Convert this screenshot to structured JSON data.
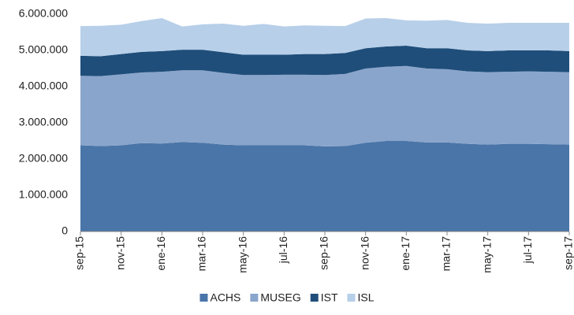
{
  "chart_data": {
    "type": "stacked_area",
    "categories": [
      "sep-15",
      null,
      "nov-15",
      null,
      "ene-16",
      null,
      "mar-16",
      null,
      "may-16",
      null,
      "jul-16",
      null,
      "sep-16",
      null,
      "nov-16",
      null,
      "ene-17",
      null,
      "mar-17",
      null,
      "may-17",
      null,
      "jul-17",
      null,
      "sep-17"
    ],
    "series": [
      {
        "name": "ACHS",
        "color": "#4a75a8",
        "values": [
          2380000,
          2360000,
          2380000,
          2440000,
          2430000,
          2470000,
          2450000,
          2400000,
          2380000,
          2380000,
          2380000,
          2380000,
          2350000,
          2360000,
          2450000,
          2500000,
          2500000,
          2460000,
          2460000,
          2420000,
          2400000,
          2420000,
          2420000,
          2410000,
          2400000
        ]
      },
      {
        "name": "MUSEG",
        "color": "#8aa5cb",
        "values": [
          1920000,
          1930000,
          1960000,
          1950000,
          1980000,
          1980000,
          2000000,
          1980000,
          1940000,
          1940000,
          1950000,
          1950000,
          1970000,
          1990000,
          2050000,
          2050000,
          2070000,
          2040000,
          2020000,
          2000000,
          2000000,
          1990000,
          2000000,
          2000000,
          2000000
        ]
      },
      {
        "name": "IST",
        "color": "#1f4e7a",
        "values": [
          550000,
          550000,
          560000,
          570000,
          570000,
          570000,
          570000,
          570000,
          560000,
          560000,
          550000,
          570000,
          580000,
          580000,
          560000,
          560000,
          560000,
          560000,
          580000,
          580000,
          580000,
          590000,
          580000,
          590000,
          580000
        ]
      },
      {
        "name": "ISL",
        "color": "#b7cfe9",
        "values": [
          820000,
          840000,
          810000,
          850000,
          910000,
          640000,
          700000,
          790000,
          800000,
          850000,
          780000,
          790000,
          780000,
          740000,
          820000,
          780000,
          700000,
          760000,
          780000,
          760000,
          760000,
          760000,
          760000,
          760000,
          780000
        ]
      }
    ],
    "ylim": [
      0,
      6000000
    ],
    "yticks": [
      0,
      {
        "value": 1000000,
        "label": "1.000.000"
      },
      {
        "value": 2000000,
        "label": "2.000.000"
      },
      {
        "value": 3000000,
        "label": "3.000.000"
      },
      {
        "value": 4000000,
        "label": "4.000.000"
      },
      {
        "value": 5000000,
        "label": "5.000.000"
      },
      {
        "value": 6000000,
        "label": "6.000.000"
      }
    ],
    "grid": false,
    "legend": "bottom"
  }
}
